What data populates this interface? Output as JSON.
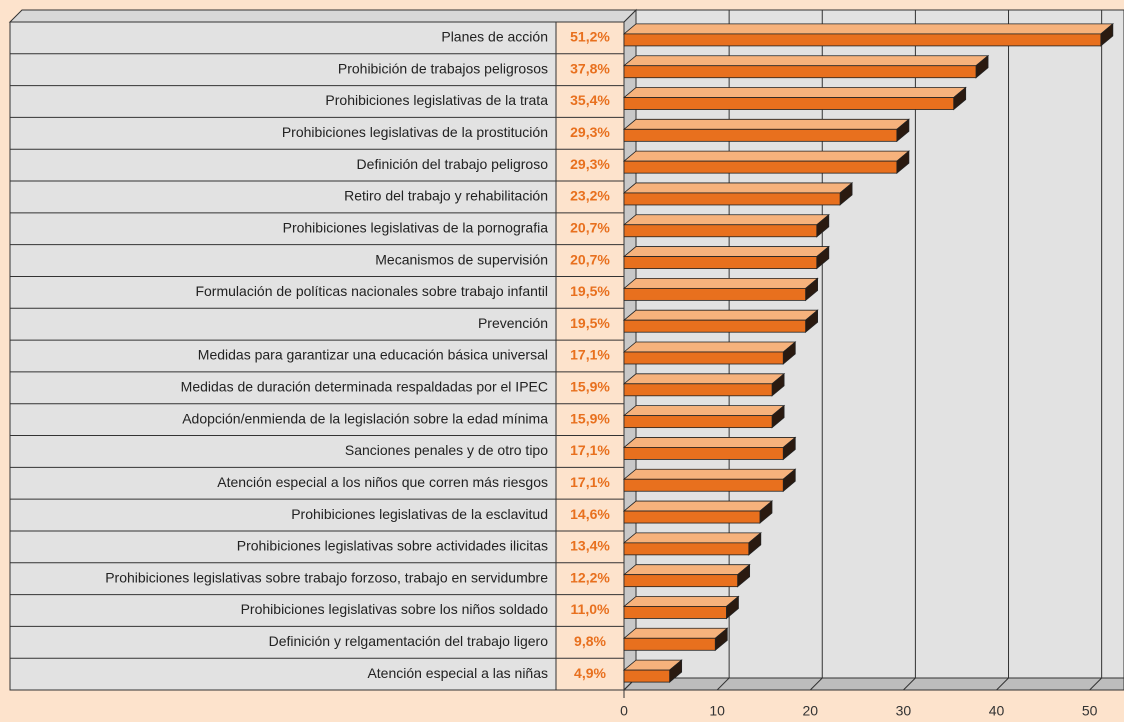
{
  "chart_data": {
    "type": "bar",
    "categories": [
      "Planes de acción",
      "Prohibición de trabajos peligrosos",
      "Prohibiciones legislativas de la trata",
      "Prohibiciones legislativas de la prostitución",
      "Definición del trabajo peligroso",
      "Retiro del trabajo y rehabilitación",
      "Prohibiciones legislativas de la pornografia",
      "Mecanismos de supervisión",
      "Formulación de políticas nacionales sobre trabajo infantil",
      "Prevención",
      "Medidas para garantizar una educación básica universal",
      "Medidas de duración determinada respaldadas por el IPEC",
      "Adopción/enmienda de la legislación sobre la edad mínima",
      "Sanciones penales y de otro tipo",
      "Atención especial a los niños que corren más riesgos",
      "Prohibiciones legislativas de la esclavitud",
      "Prohibiciones legislativas sobre actividades ilicitas",
      "Prohibiciones legislativas sobre trabajo forzoso, trabajo en servidumbre",
      "Prohibiciones legislativas sobre los niños soldado",
      "Definición y relgamentación del trabajo ligero",
      "Atención especial a las niñas"
    ],
    "values": [
      51.2,
      37.8,
      35.4,
      29.3,
      29.3,
      23.2,
      20.7,
      20.7,
      19.5,
      19.5,
      17.1,
      15.9,
      15.9,
      17.1,
      17.1,
      14.6,
      13.4,
      12.2,
      11.0,
      9.8,
      4.9
    ],
    "value_labels": [
      "51,2%",
      "37,8%",
      "35,4%",
      "29,3%",
      "29,3%",
      "23,2%",
      "20,7%",
      "20,7%",
      "19,5%",
      "19,5%",
      "17,1%",
      "15,9%",
      "15,9%",
      "17,1%",
      "17,1%",
      "14,6%",
      "13,4%",
      "12,2%",
      "11,0%",
      "9,8%",
      "4,9%"
    ],
    "color": "#e8701e",
    "xlim": [
      0,
      52.4
    ],
    "xticks": [
      0,
      10,
      20,
      30,
      40,
      50
    ],
    "grid": true
  }
}
